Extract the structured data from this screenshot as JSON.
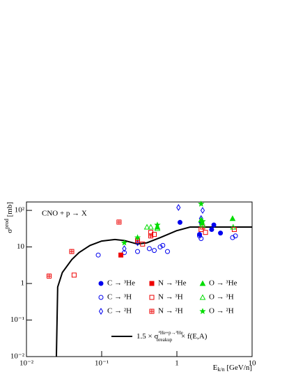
{
  "chart_data": {
    "type": "scatter",
    "annotation": "CNO + p → X",
    "x_label": {
      "main": "E",
      "sub": "k/n",
      "rest": " [GeV/n]"
    },
    "y_label": {
      "main": "σ",
      "sup": "prod",
      "rest": " [mb]"
    },
    "xscale": "log",
    "yscale": "log",
    "xlim": [
      0.01,
      10
    ],
    "ylim": [
      0.01,
      170
    ],
    "xticks": [
      {
        "value": 0.01,
        "label": "10⁻²"
      },
      {
        "value": 0.1,
        "label": "10⁻¹"
      },
      1,
      10
    ],
    "yticks": [
      {
        "value": 0.01,
        "label": "10⁻²"
      },
      {
        "value": 0.1,
        "label": "10⁻¹"
      },
      1,
      10,
      {
        "value": 100,
        "label": "10²"
      }
    ],
    "series": [
      {
        "name": "C → ³He",
        "color": "#0000ee",
        "marker": "circle",
        "filled": true,
        "x": [
          1.1,
          2.0,
          2.9,
          3.1,
          3.8,
          2.1
        ],
        "values": [
          47,
          22,
          30,
          40,
          24,
          48
        ]
      },
      {
        "name": "C → ³H",
        "color": "#0000ee",
        "marker": "circle",
        "filled": false,
        "x": [
          0.09,
          0.2,
          0.3,
          0.43,
          0.5,
          0.6,
          0.65,
          0.75,
          2.1,
          2.0,
          5.5,
          6.0
        ],
        "values": [
          6,
          7,
          7.5,
          9,
          8,
          10,
          11,
          7.5,
          17,
          20,
          18,
          20
        ]
      },
      {
        "name": "C → ²H",
        "color": "#0000ee",
        "marker": "diamond",
        "filled": false,
        "x": [
          1.05,
          2.2,
          2.1,
          0.3,
          0.2
        ],
        "values": [
          120,
          100,
          60,
          13,
          9
        ]
      },
      {
        "name": "N → ³He",
        "color": "#ee0000",
        "marker": "square",
        "filled": true,
        "x": [
          0.18
        ],
        "values": [
          6
        ]
      },
      {
        "name": "N → ³H",
        "color": "#ee0000",
        "marker": "square",
        "filled": false,
        "x": [
          0.043,
          0.35,
          0.45,
          0.5,
          2.1,
          5.8,
          2.4
        ],
        "values": [
          1.7,
          12,
          25,
          22,
          30,
          30,
          25
        ]
      },
      {
        "name": "N → ²H",
        "color": "#ee0000",
        "marker": "crosssq",
        "filled": false,
        "x": [
          0.02,
          0.04,
          0.17,
          0.3,
          0.45,
          2.2
        ],
        "values": [
          1.6,
          7.5,
          48,
          15,
          20,
          35
        ]
      },
      {
        "name": "O → ³He",
        "color": "#00dd00",
        "marker": "triangle",
        "filled": true,
        "x": [
          0.55,
          2.1,
          5.5,
          2.15
        ],
        "values": [
          35,
          55,
          60,
          45
        ]
      },
      {
        "name": "O → ³H",
        "color": "#00dd00",
        "marker": "triangle",
        "filled": false,
        "x": [
          0.4,
          0.45,
          0.55,
          2.2,
          5.6
        ],
        "values": [
          35,
          35,
          32,
          40,
          35
        ]
      },
      {
        "name": "O → ²H",
        "color": "#00dd00",
        "marker": "star",
        "filled": true,
        "x": [
          0.2,
          0.3,
          0.55,
          2.1,
          2.2
        ],
        "values": [
          13,
          18,
          40,
          150,
          50
        ]
      }
    ],
    "curve": {
      "label": {
        "prefix": "1.5 × σ",
        "sup": "⁴He+p→³He",
        "sub": "breakup",
        "suffix": " × f(E,A)"
      },
      "color": "#000000",
      "x": [
        0.025,
        0.026,
        0.03,
        0.04,
        0.05,
        0.07,
        0.1,
        0.15,
        0.2,
        0.3,
        0.4,
        0.6,
        1,
        1.5,
        3,
        10
      ],
      "values": [
        0.01,
        0.8,
        2,
        4.5,
        7,
        11,
        14.5,
        16,
        15,
        12,
        13,
        18,
        28,
        35,
        35,
        35
      ]
    }
  }
}
